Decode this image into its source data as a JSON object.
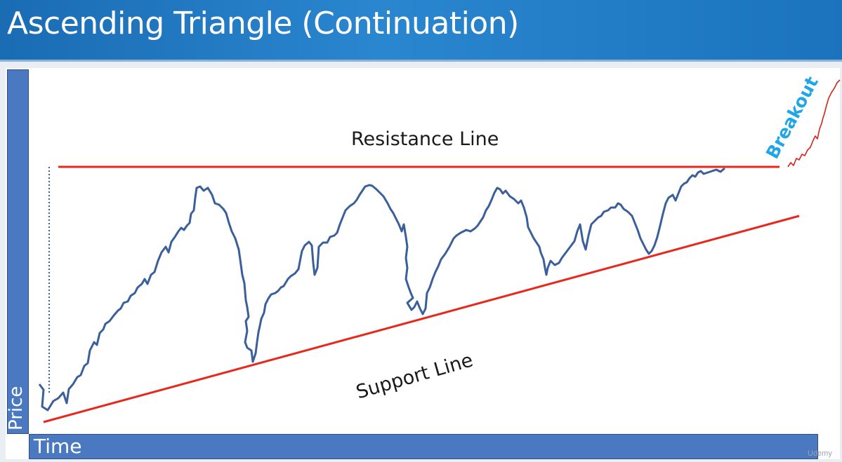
{
  "header": {
    "title": "Ascending Triangle (Continuation)"
  },
  "axes": {
    "price_label": "Price",
    "time_label": "Time"
  },
  "labels": {
    "resistance": "Resistance Line",
    "support": "Support Line",
    "breakout": "Breakout"
  },
  "watermark": {
    "text": "Udemy"
  },
  "colors": {
    "header_blue": "#1a6cb3",
    "axis_bar_blue": "#4a79c1",
    "trend_line_red": "#e8281d",
    "price_line_blue": "#3a5f9a",
    "breakout_text": "#1ea6e6",
    "breakout_line": "#d8231a"
  },
  "icons": {
    "watermark_logo": "udemy-logo-icon"
  }
}
